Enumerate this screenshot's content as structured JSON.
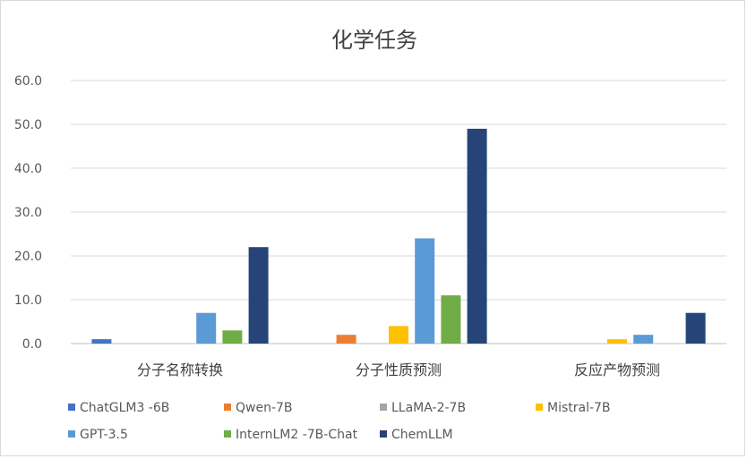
{
  "chart_data": {
    "type": "bar",
    "title": "化学任务",
    "categories": [
      "分子名称转换",
      "分子性质预测",
      "反应产物预测"
    ],
    "ylim": [
      0,
      60
    ],
    "yticks": [
      "0.0",
      "10.0",
      "20.0",
      "30.0",
      "40.0",
      "50.0",
      "60.0"
    ],
    "grid": true,
    "legend_position": "bottom",
    "series": [
      {
        "name": "ChatGLM3 -6B",
        "color": "#4472C4",
        "values": [
          1,
          0,
          0
        ]
      },
      {
        "name": "Qwen-7B",
        "color": "#ED7D31",
        "values": [
          0,
          2,
          0
        ]
      },
      {
        "name": "LLaMA-2-7B",
        "color": "#A5A5A5",
        "values": [
          0,
          0,
          0
        ]
      },
      {
        "name": "Mistral-7B",
        "color": "#FFC000",
        "values": [
          0,
          4,
          1
        ]
      },
      {
        "name": "GPT-3.5",
        "color": "#5B9BD5",
        "values": [
          7,
          24,
          2
        ]
      },
      {
        "name": "InternLM2 -7B-Chat",
        "color": "#70AD47",
        "values": [
          3,
          11,
          0
        ]
      },
      {
        "name": "ChemLLM",
        "color": "#264478",
        "values": [
          22,
          49,
          7
        ]
      }
    ]
  }
}
